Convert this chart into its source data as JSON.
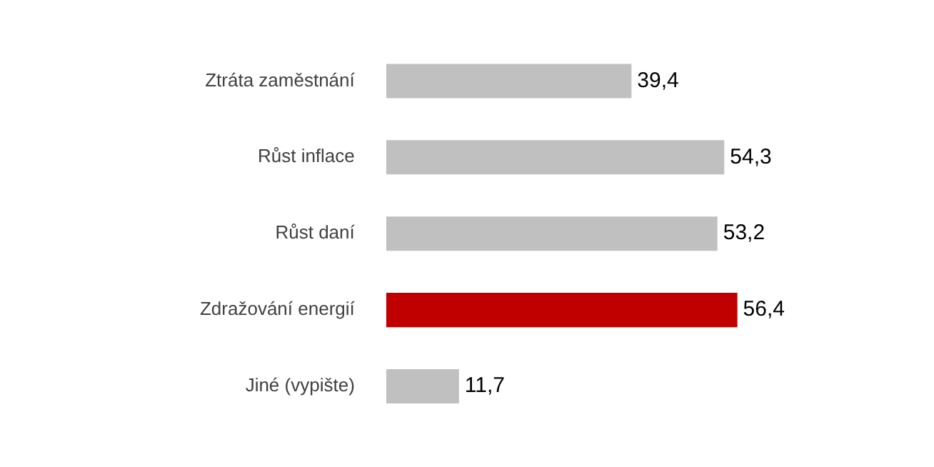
{
  "chart_data": {
    "type": "bar",
    "orientation": "horizontal",
    "categories": [
      "Ztráta zaměstnání",
      "Růst inflace",
      "Růst daní",
      "Zdražování energií",
      "Jiné (vypište)"
    ],
    "values": [
      39.4,
      54.3,
      53.2,
      56.4,
      11.7
    ],
    "colors": [
      "#c0c0c0",
      "#c0c0c0",
      "#c0c0c0",
      "#c00000",
      "#c0c0c0"
    ],
    "value_labels": [
      "39,4",
      "54,3",
      "53,2",
      "56,4",
      "11,7"
    ],
    "tick_labels": "y"
  }
}
